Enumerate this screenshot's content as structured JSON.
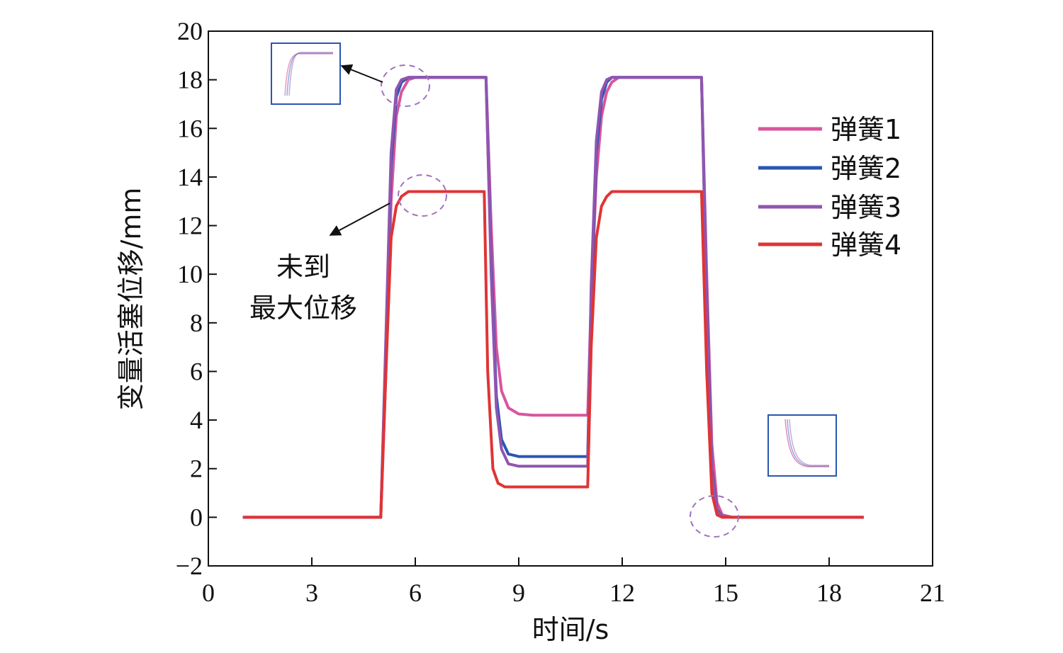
{
  "chart_data": {
    "type": "line",
    "xlabel": "时间/s",
    "ylabel": "变量活塞位移/mm",
    "xlim": [
      0,
      21
    ],
    "ylim": [
      -2,
      20
    ],
    "xticks": [
      "0",
      "3",
      "6",
      "9",
      "12",
      "15",
      "18",
      "21"
    ],
    "yticks": [
      "−2",
      "0",
      "2",
      "4",
      "6",
      "8",
      "10",
      "12",
      "14",
      "16",
      "18",
      "20"
    ],
    "legend_position": "right",
    "series": [
      {
        "name": "弹簧1",
        "color": "#d9559e",
        "x": [
          1,
          5.0,
          5.15,
          5.3,
          5.45,
          5.6,
          5.8,
          6.0,
          8.05,
          8.2,
          8.35,
          8.5,
          8.7,
          9.0,
          9.4,
          11.0,
          11.1,
          11.25,
          11.4,
          11.55,
          11.7,
          11.9,
          12.2,
          14.3,
          14.45,
          14.6,
          14.75,
          14.9,
          15.2,
          19
        ],
        "y": [
          0,
          0,
          6.0,
          13.0,
          16.5,
          17.5,
          18.0,
          18.1,
          18.1,
          12.0,
          7.0,
          5.2,
          4.5,
          4.25,
          4.2,
          4.2,
          9.0,
          14.0,
          16.5,
          17.5,
          17.9,
          18.1,
          18.1,
          18.1,
          10.0,
          3.0,
          0.6,
          0.1,
          0,
          0
        ]
      },
      {
        "name": "弹簧2",
        "color": "#2a56b0",
        "x": [
          1,
          5.0,
          5.15,
          5.3,
          5.45,
          5.6,
          5.8,
          6.0,
          8.05,
          8.2,
          8.35,
          8.5,
          8.7,
          9.0,
          9.4,
          11.0,
          11.1,
          11.25,
          11.4,
          11.55,
          11.7,
          11.9,
          12.2,
          14.3,
          14.45,
          14.6,
          14.75,
          14.9,
          15.2,
          19
        ],
        "y": [
          0,
          0,
          7.0,
          14.5,
          17.3,
          17.9,
          18.1,
          18.1,
          18.1,
          10.5,
          5.0,
          3.2,
          2.6,
          2.5,
          2.5,
          2.5,
          9.0,
          15.0,
          17.2,
          17.9,
          18.1,
          18.1,
          18.1,
          18.1,
          9.0,
          2.0,
          0.3,
          0.05,
          0,
          0
        ]
      },
      {
        "name": "弹簧3",
        "color": "#9055b0",
        "x": [
          1,
          5.0,
          5.15,
          5.3,
          5.45,
          5.6,
          5.8,
          6.0,
          8.05,
          8.2,
          8.35,
          8.5,
          8.7,
          9.0,
          9.4,
          11.0,
          11.1,
          11.25,
          11.4,
          11.55,
          11.7,
          11.9,
          12.2,
          14.3,
          14.45,
          14.6,
          14.75,
          14.9,
          15.2,
          19
        ],
        "y": [
          0,
          0,
          7.5,
          15.0,
          17.6,
          18.0,
          18.1,
          18.1,
          18.1,
          10.0,
          4.5,
          2.8,
          2.2,
          2.1,
          2.1,
          2.1,
          9.5,
          15.5,
          17.5,
          18.0,
          18.1,
          18.1,
          18.1,
          18.1,
          8.5,
          1.8,
          0.25,
          0.05,
          0,
          0
        ]
      },
      {
        "name": "弹簧4",
        "color": "#e03434",
        "x": [
          1,
          5.0,
          5.15,
          5.3,
          5.45,
          5.6,
          5.8,
          6.0,
          8.0,
          8.1,
          8.25,
          8.4,
          8.6,
          8.9,
          9.4,
          11.0,
          11.1,
          11.25,
          11.4,
          11.55,
          11.7,
          11.9,
          12.2,
          14.3,
          14.45,
          14.6,
          14.75,
          14.9,
          15.2,
          19
        ],
        "y": [
          0,
          0,
          6.0,
          11.5,
          12.8,
          13.2,
          13.4,
          13.4,
          13.4,
          6.0,
          2.0,
          1.4,
          1.25,
          1.25,
          1.25,
          1.25,
          7.0,
          11.5,
          12.8,
          13.2,
          13.4,
          13.4,
          13.4,
          13.4,
          6.0,
          1.0,
          0.1,
          0,
          0,
          0
        ]
      }
    ],
    "annotations": {
      "note_line1": "未到",
      "note_line2": "最大位移"
    }
  }
}
